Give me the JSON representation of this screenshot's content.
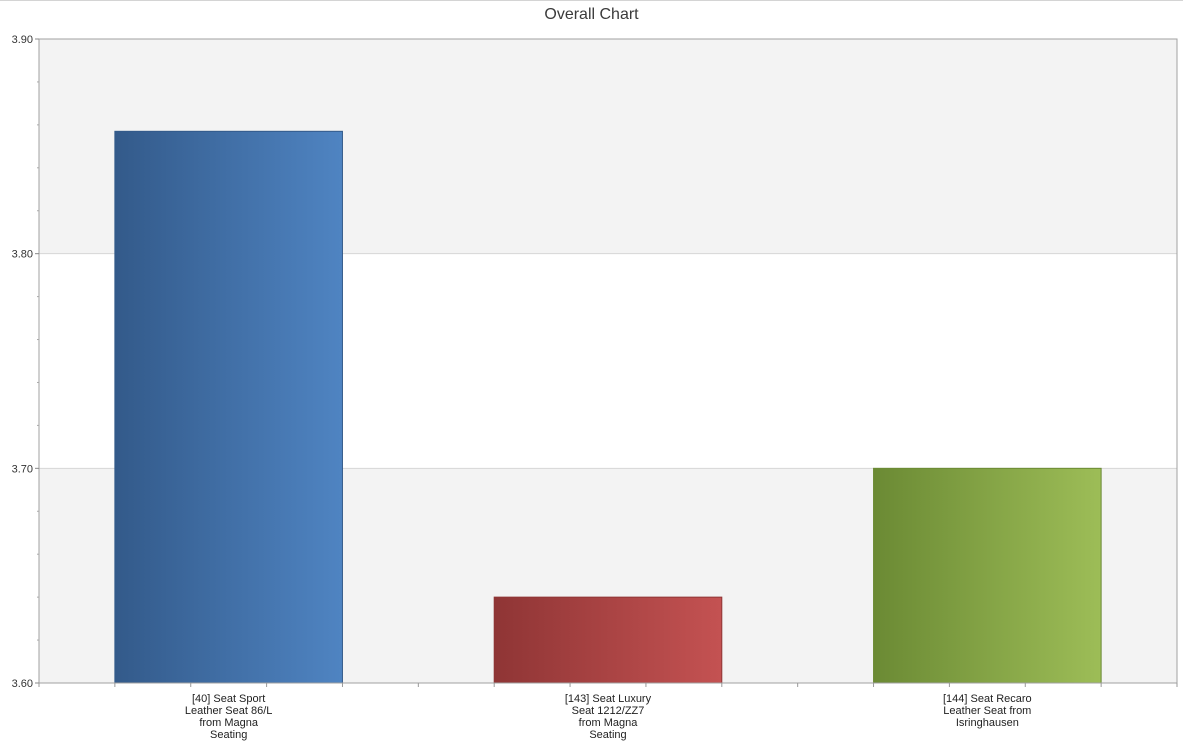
{
  "chart_data": {
    "type": "bar",
    "title": "Overall Chart",
    "xlabel": "",
    "ylabel": "",
    "ylim": [
      3.6,
      3.9
    ],
    "yticks": [
      "3.60",
      "3.70",
      "3.80",
      "3.90"
    ],
    "yticks_values": [
      3.6,
      3.7,
      3.8,
      3.9
    ],
    "grid": true,
    "categories": [
      [
        "[40] Seat Sport",
        "Leather Seat 86/L",
        "from Magna",
        "Seating"
      ],
      [
        "[143] Seat Luxury",
        "Seat 1212/ZZ7",
        "from Magna",
        "Seating"
      ],
      [
        "[144] Seat Recaro",
        "Leather Seat from",
        "Isringhausen"
      ]
    ],
    "values": [
      3.857,
      3.64,
      3.7
    ],
    "colors": [
      [
        "#335a8a",
        "#4f84c2"
      ],
      [
        "#8f3535",
        "#c45252"
      ],
      [
        "#6b8a34",
        "#9dbd57"
      ]
    ]
  }
}
